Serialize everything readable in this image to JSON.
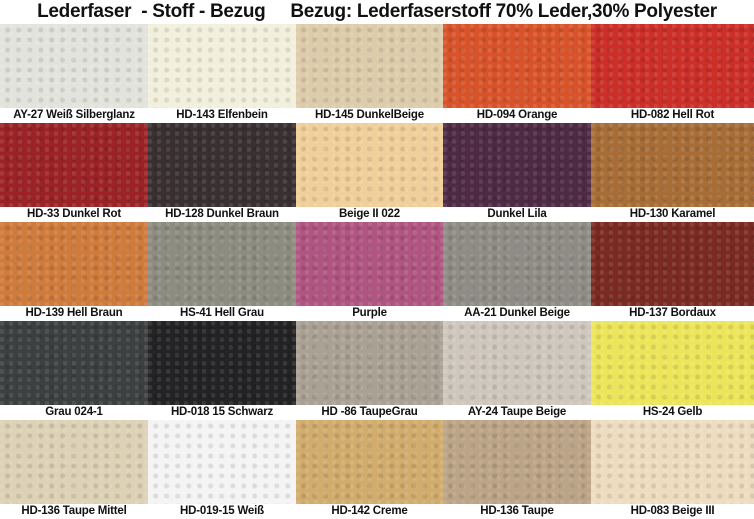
{
  "title": "Lederfaser  - Stoff - Bezug     Bezug: Lederfaserstoff 70% Leder,30% Polyester",
  "swatches": [
    {
      "label": "AY-27 Weiß Silberglanz",
      "color": "#e3e3de"
    },
    {
      "label": "HD-143 Elfenbein",
      "color": "#f2efdc"
    },
    {
      "label": "HD-145 DunkelBeige",
      "color": "#dcccaa"
    },
    {
      "label": "HD-094 Orange",
      "color": "#d9532a"
    },
    {
      "label": "HD-082 Hell Rot",
      "color": "#cc2e28"
    },
    {
      "label": "HD-33 Dunkel Rot",
      "color": "#9b2326"
    },
    {
      "label": "HD-128 Dunkel Braun",
      "color": "#3a3032"
    },
    {
      "label": "Beige II 022",
      "color": "#f1cf9a"
    },
    {
      "label": "Dunkel Lila",
      "color": "#4e2a45"
    },
    {
      "label": "HD-130 Karamel",
      "color": "#a86d37"
    },
    {
      "label": "HD-139 Hell Braun",
      "color": "#cf7b3c"
    },
    {
      "label": "HS-41 Hell Grau",
      "color": "#8d8c80"
    },
    {
      "label": "Purple",
      "color": "#b05581"
    },
    {
      "label": "AA-21 Dunkel Beige",
      "color": "#8e8c84"
    },
    {
      "label": "HD-137 Bordaux",
      "color": "#7b2a22"
    },
    {
      "label": "Grau 024-1",
      "color": "#3d4040"
    },
    {
      "label": "HD-018 15 Schwarz",
      "color": "#232224"
    },
    {
      "label": "HD -86 TaupeGrau",
      "color": "#aaa194"
    },
    {
      "label": "AY-24 Taupe Beige",
      "color": "#cfc7bd"
    },
    {
      "label": "HS-24 Gelb",
      "color": "#ece55a"
    },
    {
      "label": "HD-136 Taupe Mittel",
      "color": "#ddd1b6"
    },
    {
      "label": "HD-019-15 Weiß",
      "color": "#f4f4f4"
    },
    {
      "label": "HD-142 Creme",
      "color": "#d1ac6d"
    },
    {
      "label": "HD-136 Taupe",
      "color": "#bca486"
    },
    {
      "label": "HD-083 Beige III",
      "color": "#eddcbf"
    }
  ]
}
